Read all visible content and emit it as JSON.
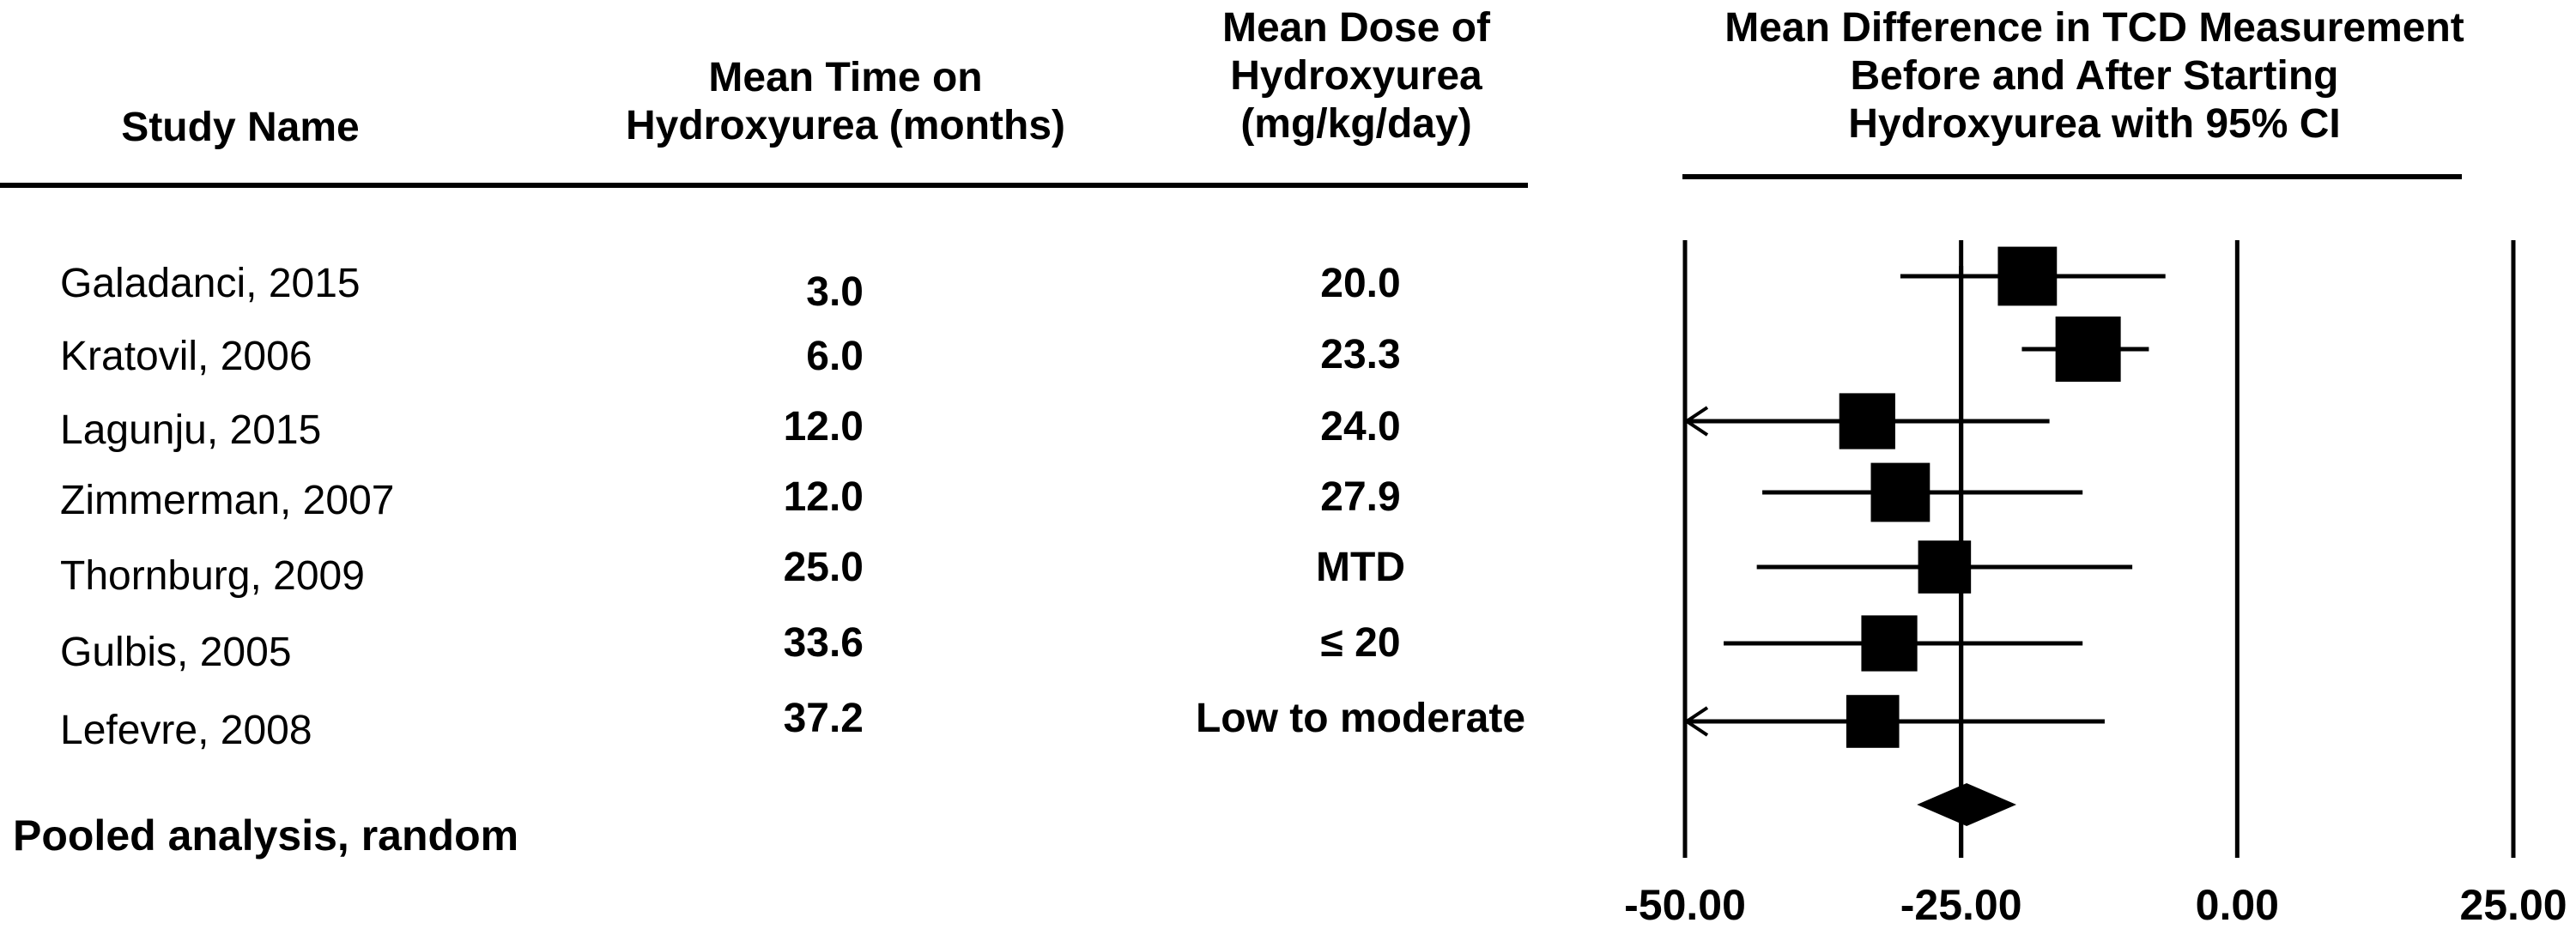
{
  "headers": {
    "study_name": "Study Name",
    "time": [
      "Mean Time on",
      "Hydroxyurea (months)"
    ],
    "dose": [
      "Mean Dose of",
      "Hydroxyurea",
      "(mg/kg/day)"
    ],
    "effect": [
      "Mean Difference in TCD Measurement",
      "Before and After Starting",
      "Hydroxyurea with 95% CI"
    ]
  },
  "rows": [
    {
      "study": "Galadanci, 2015",
      "time": "3.0",
      "dose": "20.0"
    },
    {
      "study": "Kratovil, 2006",
      "time": "6.0",
      "dose": "23.3"
    },
    {
      "study": "Lagunju, 2015",
      "time": "12.0",
      "dose": "24.0"
    },
    {
      "study": "Zimmerman, 2007",
      "time": "12.0",
      "dose": "27.9"
    },
    {
      "study": "Thornburg, 2009",
      "time": "25.0",
      "dose": "MTD"
    },
    {
      "study": "Gulbis, 2005",
      "time": "33.6",
      "dose": "≤ 20"
    },
    {
      "study": "Lefevre, 2008",
      "time": "37.2",
      "dose": "Low to moderate"
    }
  ],
  "pooled_label": "Pooled analysis, random",
  "chart_data": {
    "type": "forest",
    "xlim": [
      -50,
      25
    ],
    "ticks": [
      -50,
      -25,
      0,
      25
    ],
    "tick_labels": [
      "-50.00",
      "-25.00",
      "0.00",
      "25.00"
    ],
    "reference_line": -25,
    "studies": [
      {
        "name": "Galadanci, 2015",
        "mean": -19,
        "lower": -30.5,
        "upper": -6.5,
        "weight": 0.8,
        "arrow_left": false
      },
      {
        "name": "Kratovil, 2006",
        "mean": -13.5,
        "lower": -19.5,
        "upper": -8,
        "weight": 1.0,
        "arrow_left": false
      },
      {
        "name": "Lagunju, 2015",
        "mean": -33.5,
        "lower": -50,
        "upper": -17,
        "weight": 0.7,
        "arrow_left": true
      },
      {
        "name": "Zimmerman, 2007",
        "mean": -30.5,
        "lower": -43,
        "upper": -14,
        "weight": 0.8,
        "arrow_left": false
      },
      {
        "name": "Thornburg, 2009",
        "mean": -26.5,
        "lower": -43.5,
        "upper": -9.5,
        "weight": 0.6,
        "arrow_left": false
      },
      {
        "name": "Gulbis, 2005",
        "mean": -31.5,
        "lower": -46.5,
        "upper": -14,
        "weight": 0.7,
        "arrow_left": false
      },
      {
        "name": "Lefevre, 2008",
        "mean": -33,
        "lower": -50,
        "upper": -12,
        "weight": 0.6,
        "arrow_left": true
      }
    ],
    "pooled": {
      "mean": -24.5,
      "lower": -29,
      "upper": -20
    }
  }
}
